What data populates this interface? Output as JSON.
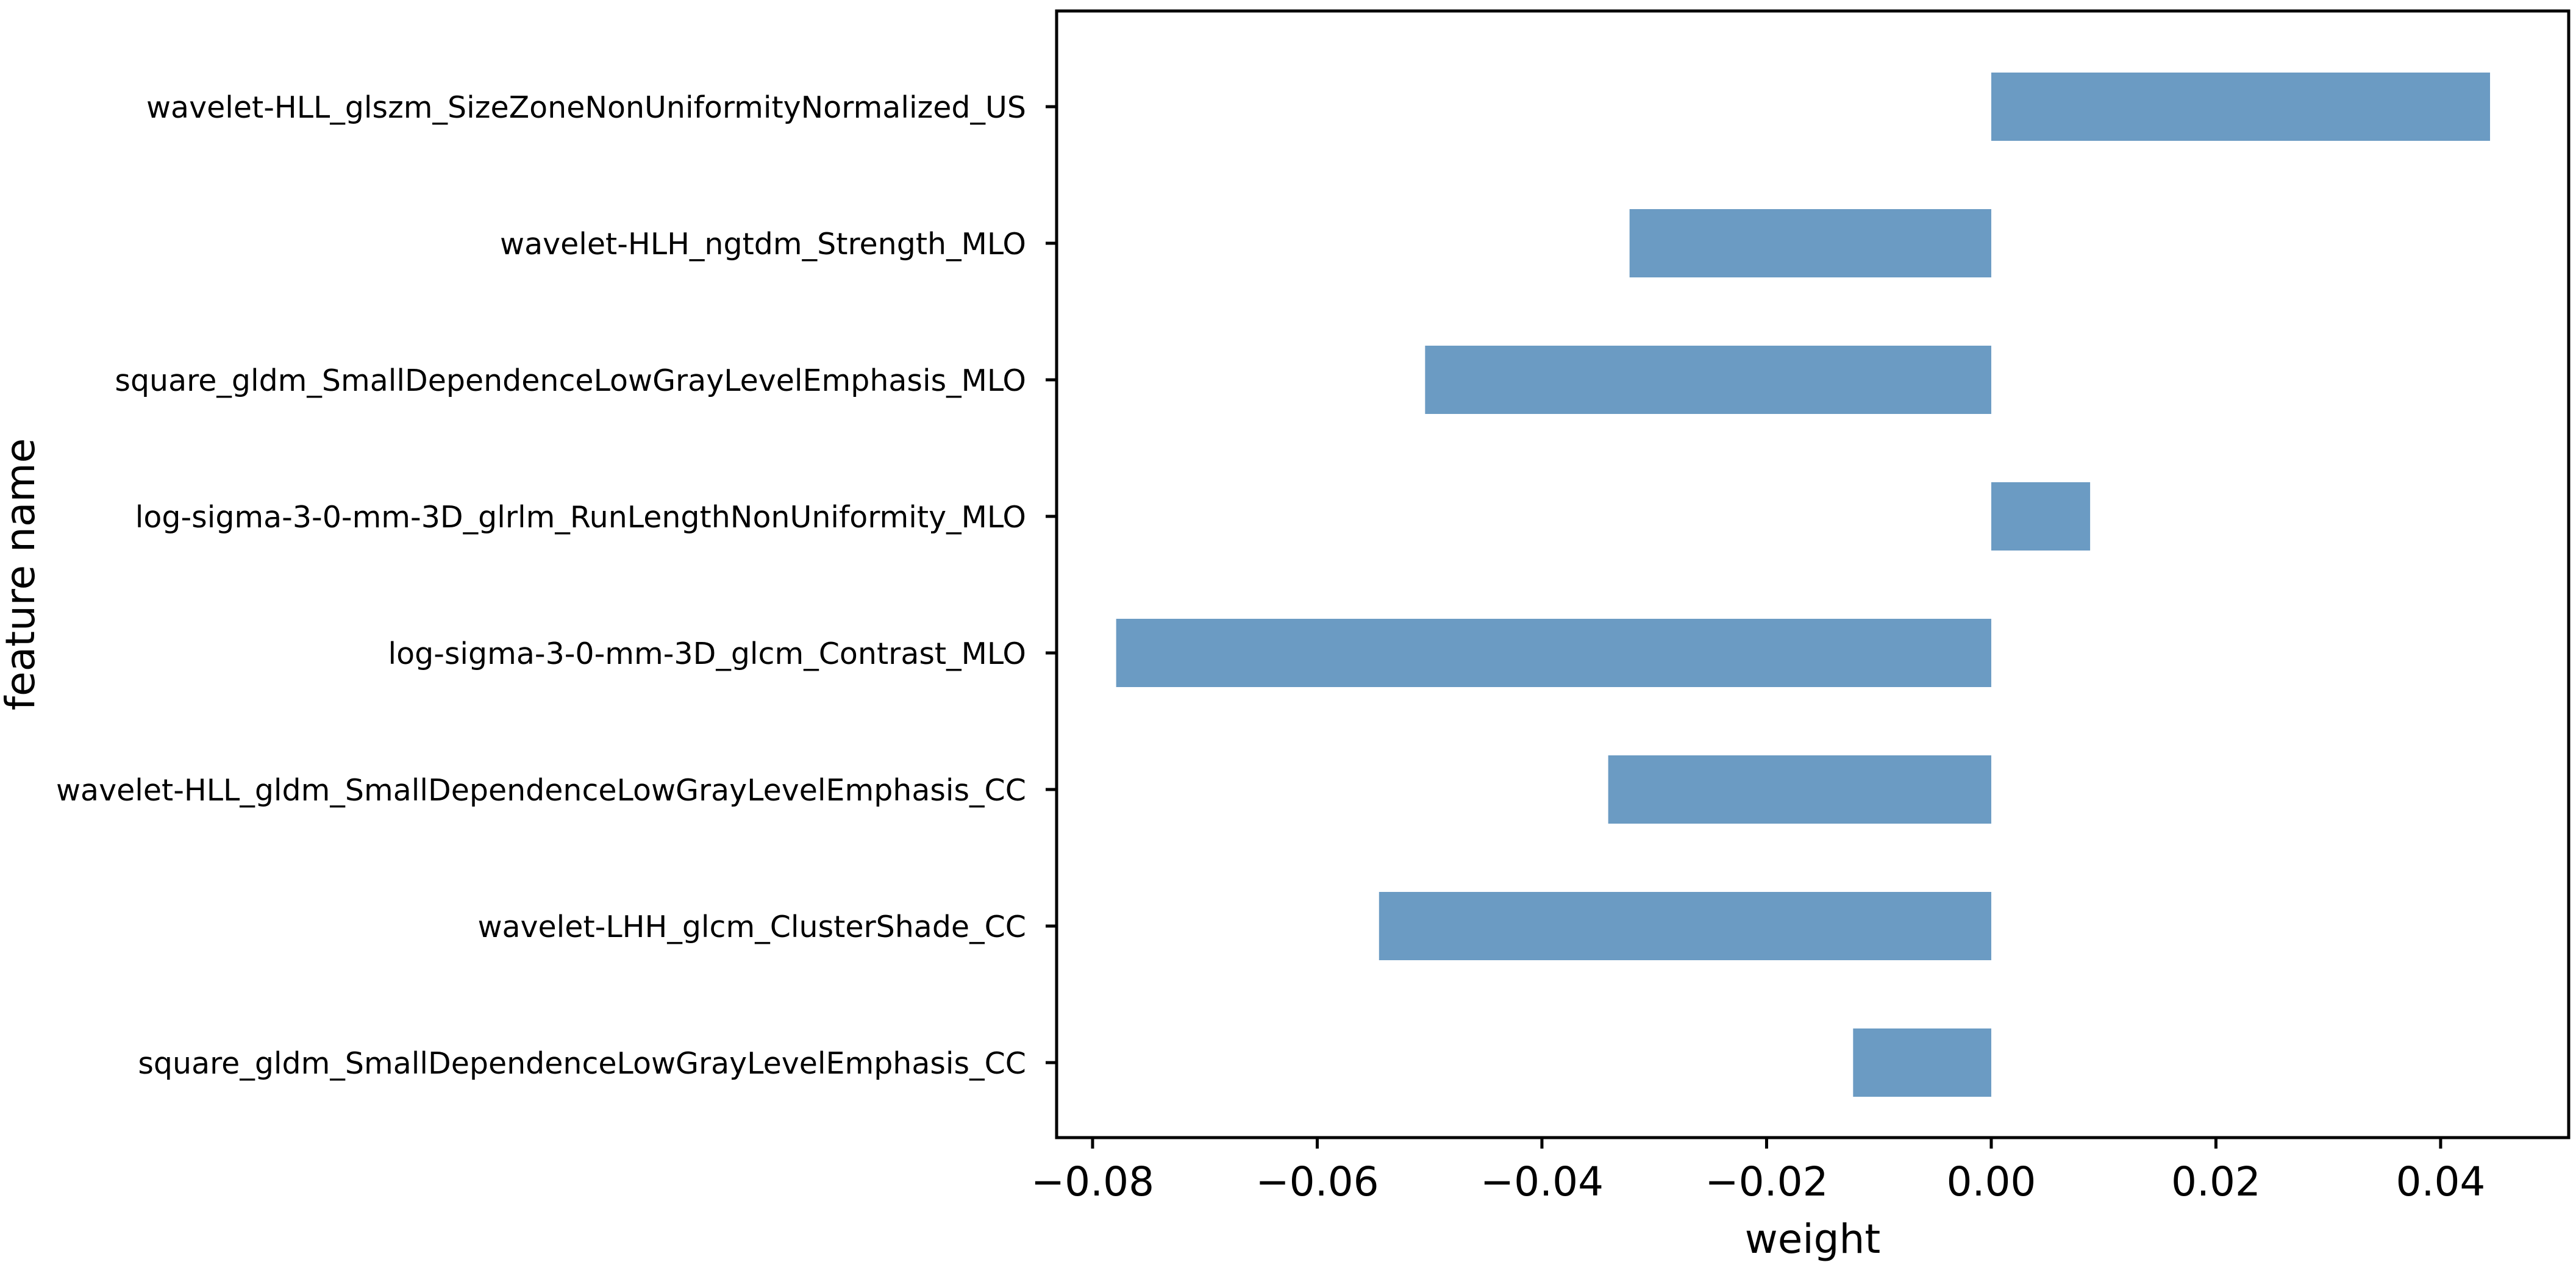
{
  "chart_data": {
    "type": "bar",
    "orientation": "horizontal",
    "title": "",
    "xlabel": "weight",
    "ylabel": "feature name",
    "categories": [
      "wavelet-HLL_glszm_SizeZoneNonUniformityNormalized_US",
      "wavelet-HLH_ngtdm_Strength_MLO",
      "square_gldm_SmallDependenceLowGrayLevelEmphasis_MLO",
      "log-sigma-3-0-mm-3D_glrlm_RunLengthNonUniformity_MLO",
      "log-sigma-3-0-mm-3D_glcm_Contrast_MLO",
      "wavelet-HLL_gldm_SmallDependenceLowGrayLevelEmphasis_CC",
      "wavelet-LHH_glcm_ClusterShade_CC",
      "square_gldm_SmallDependenceLowGrayLevelEmphasis_CC"
    ],
    "values": [
      0.0444,
      -0.0322,
      -0.0504,
      0.0088,
      -0.0779,
      -0.0341,
      -0.0545,
      -0.0123
    ],
    "xticks": [
      -0.08,
      -0.06,
      -0.04,
      -0.02,
      0.0,
      0.02,
      0.04
    ],
    "xtick_labels": [
      "−0.08",
      "−0.06",
      "−0.04",
      "−0.02",
      "0.00",
      "0.02",
      "0.04"
    ],
    "xlim": [
      -0.0832,
      0.0514
    ],
    "bar_color": "#6b9bc3",
    "grid": false,
    "legend": false
  }
}
